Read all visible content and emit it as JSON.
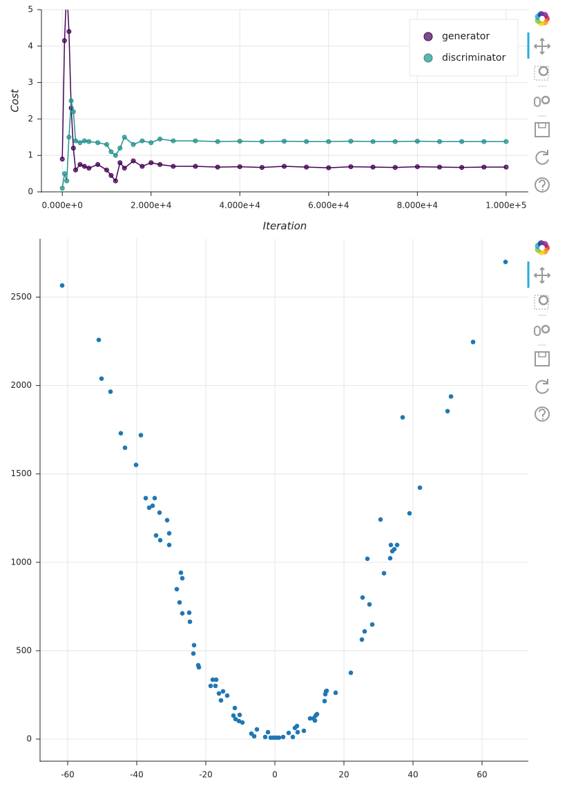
{
  "chart_data": [
    {
      "type": "line",
      "xlabel": "Iteration",
      "ylabel": "Cost",
      "x": [
        0,
        500,
        1000,
        1500,
        2000,
        2500,
        3000,
        4000,
        5000,
        6000,
        8000,
        10000,
        11000,
        12000,
        13000,
        14000,
        16000,
        18000,
        20000,
        22000,
        25000,
        30000,
        35000,
        40000,
        45000,
        50000,
        55000,
        60000,
        65000,
        70000,
        75000,
        80000,
        85000,
        90000,
        95000,
        100000
      ],
      "series": [
        {
          "name": "generator",
          "color": "#440154",
          "values": [
            0.9,
            4.15,
            5.6,
            4.4,
            2.3,
            1.2,
            0.6,
            0.75,
            0.7,
            0.65,
            0.75,
            0.6,
            0.45,
            0.3,
            0.8,
            0.65,
            0.85,
            0.7,
            0.8,
            0.75,
            0.7,
            0.7,
            0.68,
            0.69,
            0.67,
            0.7,
            0.68,
            0.66,
            0.69,
            0.68,
            0.67,
            0.69,
            0.68,
            0.67,
            0.68,
            0.68
          ]
        },
        {
          "name": "discriminator",
          "color": "#21918c",
          "values": [
            0.1,
            0.5,
            0.3,
            1.5,
            2.5,
            2.2,
            1.4,
            1.35,
            1.4,
            1.38,
            1.35,
            1.3,
            1.1,
            1.0,
            1.2,
            1.5,
            1.3,
            1.4,
            1.35,
            1.45,
            1.4,
            1.4,
            1.38,
            1.39,
            1.38,
            1.39,
            1.38,
            1.38,
            1.39,
            1.38,
            1.38,
            1.39,
            1.38,
            1.38,
            1.38,
            1.38
          ]
        }
      ],
      "markers": true,
      "xlim": [
        -4700,
        105000
      ],
      "ylim": [
        0,
        5
      ],
      "xticks": [
        {
          "value": 0,
          "label": "0.000e+0"
        },
        {
          "value": 20000,
          "label": "2.000e+4"
        },
        {
          "value": 40000,
          "label": "4.000e+4"
        },
        {
          "value": 60000,
          "label": "6.000e+4"
        },
        {
          "value": 80000,
          "label": "8.000e+4"
        },
        {
          "value": 100000,
          "label": "1.000e+5"
        }
      ],
      "yticks": [
        0,
        1,
        2,
        3,
        4,
        5
      ],
      "grid": true,
      "legend": "top_right"
    },
    {
      "type": "scatter",
      "color": "#1f77b4",
      "x": [
        -61.6,
        -51,
        -50.2,
        -47.6,
        -44.6,
        -43.4,
        -40.2,
        -38.8,
        -37.4,
        -36.4,
        -35.4,
        -34.8,
        -34.4,
        -33.4,
        -33.2,
        -31.2,
        -30.6,
        -30.6,
        -28.4,
        -27.6,
        -27.2,
        -26.8,
        -26.8,
        -24.8,
        -24.6,
        -23.4,
        -23.6,
        -22.2,
        -22,
        -18.6,
        -18,
        -17,
        -17.2,
        -16.2,
        -15.6,
        -15,
        -13.8,
        -12,
        -11.6,
        -11.4,
        -10.4,
        -10.2,
        -9.4,
        -6.8,
        -6,
        -5.2,
        -2.8,
        -2,
        -1.2,
        -0.4,
        0.4,
        1.2,
        2.4,
        4,
        5.2,
        5.8,
        6.4,
        6.6,
        8.4,
        10.2,
        11.2,
        11.6,
        11.8,
        12.2,
        14.4,
        14.6,
        14.8,
        15,
        17.6,
        22,
        25.2,
        25.4,
        26,
        26.8,
        27.4,
        28.2,
        30.6,
        31.6,
        33.4,
        33.6,
        34,
        34.6,
        35.4,
        37,
        39,
        42,
        50,
        51,
        57.4,
        66.8
      ],
      "values": [
        2566,
        2258,
        2039,
        1965,
        1730,
        1648,
        1551,
        1719,
        1363,
        1309,
        1320,
        1363,
        1152,
        1281,
        1125,
        1238,
        1164,
        1098,
        848,
        773,
        941,
        910,
        711,
        715,
        664,
        531,
        484,
        418,
        406,
        301,
        336,
        336,
        301,
        258,
        219,
        270,
        246,
        133,
        176,
        113,
        102,
        137,
        94,
        31,
        16,
        55,
        12,
        39,
        8,
        8,
        8,
        8,
        12,
        35,
        12,
        63,
        74,
        39,
        47,
        117,
        117,
        105,
        133,
        141,
        215,
        254,
        270,
        273,
        262,
        375,
        563,
        801,
        609,
        1020,
        762,
        648,
        1242,
        938,
        1023,
        1098,
        1063,
        1074,
        1098,
        1820,
        1277,
        1422,
        1855,
        1938,
        2246,
        2699
      ],
      "xlim": [
        -68,
        73.4
      ],
      "ylim": [
        -125,
        2830
      ],
      "xticks": [
        -60,
        -40,
        -20,
        0,
        20,
        40,
        60
      ],
      "yticks": [
        0,
        500,
        1000,
        1500,
        2000,
        2500
      ],
      "grid": true
    }
  ]
}
